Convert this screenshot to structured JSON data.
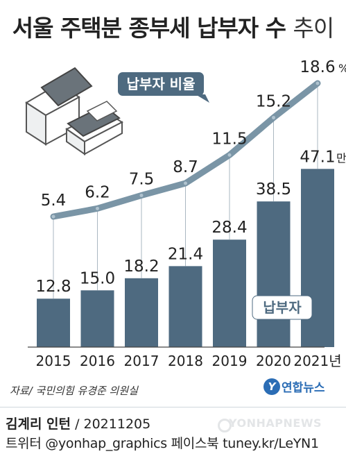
{
  "title": {
    "main": "서울 주택분 종부세 납부자 수",
    "suffix": "추이"
  },
  "chart_data": {
    "type": "bar",
    "categories": [
      "2015",
      "2016",
      "2017",
      "2018",
      "2019",
      "2020",
      "2021년"
    ],
    "series": [
      {
        "name": "납부자",
        "type": "bar",
        "values": [
          12.8,
          15.0,
          18.2,
          21.4,
          28.4,
          38.5,
          47.1
        ],
        "unit": "만명",
        "labels": [
          "12.8",
          "15.0",
          "18.2",
          "21.4",
          "28.4",
          "38.5",
          "47.1"
        ]
      },
      {
        "name": "납부자 비율",
        "type": "line",
        "values": [
          5.4,
          6.2,
          7.5,
          8.7,
          11.5,
          15.2,
          18.6
        ],
        "unit": "%",
        "labels": [
          "5.4",
          "6.2",
          "7.5",
          "8.7",
          "11.5",
          "15.2",
          "18.6"
        ]
      }
    ],
    "colors": {
      "bar": "#4e6a80",
      "line": "#7a95a6",
      "point": "#b0c3cf",
      "label_box": "#4e6a80",
      "house_wall": "#ffffff",
      "house_roof": "#6a737a"
    }
  },
  "source": "자료/ 국민의힘 유경준 의원실",
  "logo": {
    "mark": "Y",
    "text": "연합뉴스"
  },
  "credit": {
    "author": "김계리 인턴",
    "date": "/ 20211205"
  },
  "watermark": "YONHAPNEWS",
  "footer": "트위터 @yonhap_graphics  페이스북 tuney.kr/LeYN1"
}
